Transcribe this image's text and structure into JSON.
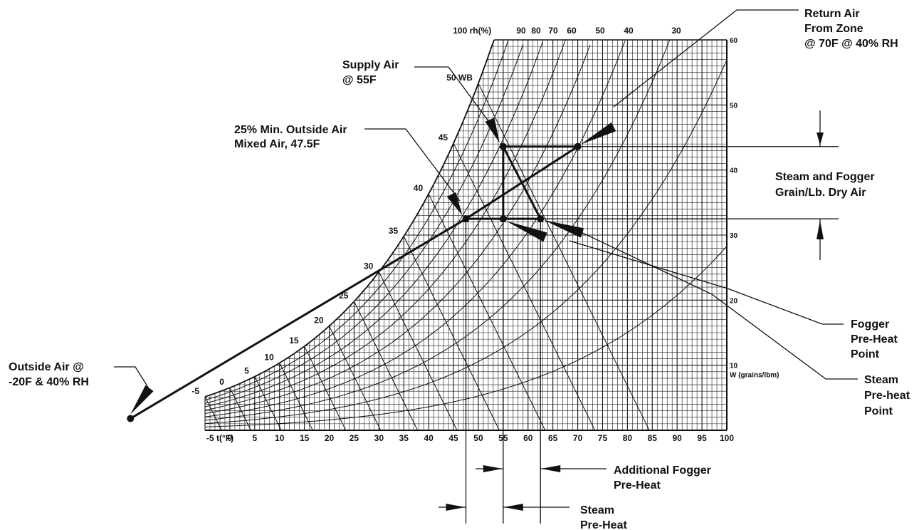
{
  "colors": {
    "ink": "#111111",
    "grid": "#1a1a1a",
    "background": "#ffffff"
  },
  "chart_data": {
    "type": "psychrometric-diagram",
    "x_axis": {
      "symbol_label": "t(°F)",
      "ticks": [
        -5,
        0,
        5,
        10,
        15,
        20,
        25,
        30,
        35,
        40,
        45,
        50,
        55,
        60,
        65,
        70,
        75,
        80,
        85,
        90,
        95,
        100
      ],
      "range": [
        -5,
        100
      ]
    },
    "y_axis": {
      "label": "W (grains/lbm)",
      "ticks": [
        10,
        20,
        30,
        40,
        50,
        60
      ],
      "range": [
        0,
        60
      ]
    },
    "rh_label": "100 rh(%)",
    "rh_ticks": [
      "90",
      "80",
      "70",
      "60",
      "50",
      "40",
      "30"
    ],
    "wb_label_suffix": "WB",
    "wb_ticks": [
      -5,
      0,
      5,
      10,
      15,
      20,
      25,
      30,
      35,
      40,
      45,
      50
    ],
    "states": [
      {
        "id": "outside",
        "t": -20,
        "w": 1.8
      },
      {
        "id": "mixed",
        "t": 47.5,
        "w": 32.5
      },
      {
        "id": "steam-preheat",
        "t": 55,
        "w": 32.5
      },
      {
        "id": "fogger-preheat",
        "t": 62.5,
        "w": 32.5
      },
      {
        "id": "supply",
        "t": 55,
        "w": 43.6
      },
      {
        "id": "return",
        "t": 70,
        "w": 43.6
      }
    ]
  },
  "annotations": {
    "return_air": [
      "Return Air",
      "From Zone",
      "@ 70F @ 40% RH"
    ],
    "supply_air": [
      "Supply Air",
      "@ 55F"
    ],
    "mixed_air": [
      "25% Min. Outside Air",
      "Mixed Air, 47.5F"
    ],
    "steam_fogger": [
      "Steam and Fogger",
      "Grain/Lb. Dry Air"
    ],
    "fogger_point": [
      "Fogger",
      "Pre-Heat",
      "Point"
    ],
    "steam_point": [
      "Steam",
      "Pre-heat",
      "Point"
    ],
    "outside_air": [
      "Outside Air @",
      "-20F & 40% RH"
    ],
    "additional_fogger": [
      "Additional Fogger",
      "Pre-Heat"
    ],
    "steam_preheat": [
      "Steam",
      "Pre-Heat"
    ]
  }
}
